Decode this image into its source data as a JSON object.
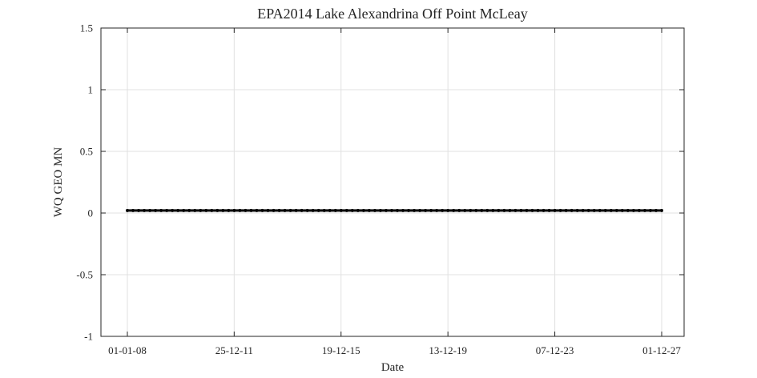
{
  "chart_data": {
    "type": "line",
    "title": "EPA2014 Lake Alexandrina Off Point McLeay",
    "xlabel": "Date",
    "ylabel": "WQ GEO MN",
    "xlim": [
      "01-01-08",
      "01-12-27"
    ],
    "ylim": [
      -1,
      1.5
    ],
    "x_ticks": [
      "01-01-08",
      "25-12-11",
      "19-12-15",
      "13-12-19",
      "07-12-23",
      "01-12-27"
    ],
    "y_ticks": [
      "-1",
      "-0.5",
      "0",
      "0.5",
      "1",
      "1.5"
    ],
    "grid": true,
    "legend": "none",
    "series": [
      {
        "color": "#000000",
        "marker": "dot",
        "x": [
          "01-01-08",
          "01-12-27"
        ],
        "y": [
          0.02,
          0.02
        ]
      }
    ]
  }
}
